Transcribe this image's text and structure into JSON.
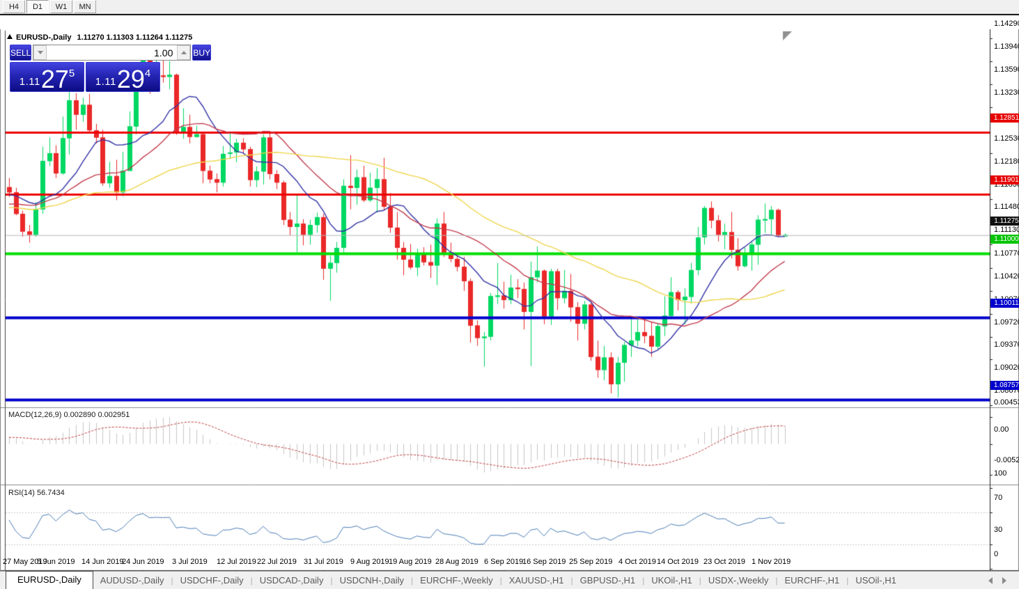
{
  "toolbar": {
    "timeframes": [
      "H4",
      "D1",
      "W1",
      "MN"
    ],
    "active": "D1"
  },
  "header": {
    "symbol": "EURUSD-,Daily",
    "ohlc": "1.11270 1.11303 1.11264 1.11275"
  },
  "trade": {
    "sell_label": "SELL",
    "buy_label": "BUY",
    "volume": "1.00",
    "sell_price": {
      "prefix": "1.11",
      "big": "27",
      "sup": "5"
    },
    "buy_price": {
      "prefix": "1.11",
      "big": "29",
      "sup": "4"
    }
  },
  "price_axis": {
    "ticks": [
      "1.14290",
      "1.13940",
      "1.13590",
      "1.13230",
      "1.12530",
      "1.12180",
      "1.11830",
      "1.11480",
      "1.11130",
      "1.10770",
      "1.10420",
      "1.10070",
      "1.09720",
      "1.09370",
      "1.09020",
      "1.08670"
    ],
    "badges": [
      {
        "text": "1.12851",
        "price": 1.12851,
        "bg": "#e60000"
      },
      {
        "text": "1.11901",
        "price": 1.11901,
        "bg": "#e60000"
      },
      {
        "text": "1.11275",
        "price": 1.11275,
        "bg": "#111111"
      },
      {
        "text": "1.11000",
        "price": 1.11,
        "bg": "#00c400"
      },
      {
        "text": "1.10011",
        "price": 1.10011,
        "bg": "#0000cc"
      },
      {
        "text": "1.08757",
        "price": 1.08757,
        "bg": "#0000cc"
      }
    ]
  },
  "macd": {
    "name": "MACD(12,26,9)",
    "value_main": "0.002890",
    "value_signal": "0.002951",
    "ticks": [
      {
        "t": "0.004536",
        "v": 0.004536
      },
      {
        "t": "0.00",
        "v": 0
      },
      {
        "t": "-0.005205",
        "v": -0.005205
      }
    ],
    "hist_color": "#c6c6c6",
    "signal_color": "#c03a3a"
  },
  "rsi": {
    "name": "RSI(14)",
    "value": "56.7434",
    "ticks": [
      {
        "t": "100",
        "v": 100
      },
      {
        "t": "70",
        "v": 70
      },
      {
        "t": "30",
        "v": 30
      },
      {
        "t": "0",
        "v": 0
      }
    ],
    "levels": [
      70,
      30
    ],
    "line_color": "#4b7db8",
    "level_color": "#c8c8c8"
  },
  "tabs": {
    "divider": "|",
    "items": [
      "EURUSD-,Daily",
      "AUDUSD-,Daily",
      "USDCHF-,Daily",
      "USDCAD-,Daily",
      "USDCNH-,Daily",
      "EURCHF-,Weekly",
      "XAUUSD-,H1",
      "GBPUSD-,H1",
      "UKOil-,H1",
      "USDX-,Weekly",
      "EURCHF-,H1",
      "USOil-,H1"
    ],
    "active_index": 0
  },
  "chart_data": {
    "type": "candlestick",
    "title": "EURUSD-,Daily",
    "bull_color": "#00d862",
    "bear_color": "#ea2828",
    "bid_line": {
      "price": 1.11275,
      "color": "#b8b8b8"
    },
    "hlines": [
      {
        "price": 1.12851,
        "color": "#ee0000",
        "width": 3
      },
      {
        "price": 1.11901,
        "color": "#ee0000",
        "width": 3
      },
      {
        "price": 1.11,
        "color": "#00dd00",
        "width": 4
      },
      {
        "price": 1.10011,
        "color": "#0000cc",
        "width": 4
      },
      {
        "price": 1.08757,
        "color": "#0000cc",
        "width": 4
      }
    ],
    "moving_averages": [
      {
        "period": 10,
        "color": "#3333a6"
      },
      {
        "period": 22,
        "color": "#c23b4c"
      },
      {
        "period": 45,
        "color": "#efd54b"
      }
    ],
    "x_labels": [
      {
        "t": "27 May 2019",
        "i": 0
      },
      {
        "t": "5 Jun 2019",
        "i": 7
      },
      {
        "t": "14 Jun 2019",
        "i": 14
      },
      {
        "t": "24 Jun 2019",
        "i": 20
      },
      {
        "t": "3 Jul 2019",
        "i": 27
      },
      {
        "t": "12 Jul 2019",
        "i": 34
      },
      {
        "t": "22 Jul 2019",
        "i": 40
      },
      {
        "t": "31 Jul 2019",
        "i": 47
      },
      {
        "t": "9 Aug 2019",
        "i": 54
      },
      {
        "t": "19 Aug 2019",
        "i": 60
      },
      {
        "t": "28 Aug 2019",
        "i": 67
      },
      {
        "t": "6 Sep 2019",
        "i": 74
      },
      {
        "t": "16 Sep 2019",
        "i": 80
      },
      {
        "t": "25 Sep 2019",
        "i": 87
      },
      {
        "t": "4 Oct 2019",
        "i": 94
      },
      {
        "t": "14 Oct 2019",
        "i": 100
      },
      {
        "t": "23 Oct 2019",
        "i": 107
      },
      {
        "t": "1 Nov 2019",
        "i": 114
      }
    ],
    "warmup_closes": [
      1.114,
      1.1148,
      1.1155,
      1.115,
      1.1144,
      1.1152,
      1.1158,
      1.115,
      1.1162,
      1.1155,
      1.1165,
      1.1158,
      1.117,
      1.1163,
      1.1175,
      1.1168,
      1.118,
      1.1173,
      1.1185,
      1.1179,
      1.119,
      1.1184,
      1.1195,
      1.1189,
      1.1199,
      1.1205
    ],
    "candles": [
      [
        "2019-05-27",
        1.1201,
        1.1215,
        1.1186,
        1.1193
      ],
      [
        "2019-05-28",
        1.1193,
        1.12,
        1.1158,
        1.116
      ],
      [
        "2019-05-29",
        1.116,
        1.1165,
        1.1125,
        1.1133
      ],
      [
        "2019-05-30",
        1.1133,
        1.1143,
        1.1116,
        1.1128
      ],
      [
        "2019-05-31",
        1.1128,
        1.1178,
        1.1125,
        1.1167
      ],
      [
        "2019-06-03",
        1.1167,
        1.1263,
        1.116,
        1.1241
      ],
      [
        "2019-06-04",
        1.1241,
        1.1277,
        1.1233,
        1.1253
      ],
      [
        "2019-06-05",
        1.1253,
        1.1265,
        1.1215,
        1.1222
      ],
      [
        "2019-06-06",
        1.1222,
        1.1309,
        1.122,
        1.1276
      ],
      [
        "2019-06-07",
        1.1276,
        1.1348,
        1.1251,
        1.1334
      ],
      [
        "2019-06-10",
        1.1334,
        1.1345,
        1.1289,
        1.1312
      ],
      [
        "2019-06-11",
        1.1312,
        1.1338,
        1.1301,
        1.1327
      ],
      [
        "2019-06-12",
        1.1327,
        1.1344,
        1.1284,
        1.1288
      ],
      [
        "2019-06-13",
        1.1288,
        1.1298,
        1.1268,
        1.1277
      ],
      [
        "2019-06-14",
        1.1277,
        1.1289,
        1.1203,
        1.1207
      ],
      [
        "2019-06-17",
        1.1207,
        1.124,
        1.12,
        1.1218
      ],
      [
        "2019-06-18",
        1.1218,
        1.1243,
        1.1181,
        1.1193
      ],
      [
        "2019-06-19",
        1.1193,
        1.1255,
        1.1187,
        1.1226
      ],
      [
        "2019-06-20",
        1.1226,
        1.1317,
        1.1226,
        1.1294
      ],
      [
        "2019-06-21",
        1.1294,
        1.1378,
        1.1282,
        1.1369
      ],
      [
        "2019-06-24",
        1.1369,
        1.1406,
        1.1365,
        1.14
      ],
      [
        "2019-06-25",
        1.14,
        1.1412,
        1.1344,
        1.1366
      ],
      [
        "2019-06-26",
        1.1366,
        1.1405,
        1.1348,
        1.1372
      ],
      [
        "2019-06-27",
        1.1372,
        1.1412,
        1.1361,
        1.137
      ],
      [
        "2019-06-28",
        1.137,
        1.1394,
        1.1351,
        1.1373
      ],
      [
        "2019-07-01",
        1.1373,
        1.1375,
        1.1281,
        1.1285
      ],
      [
        "2019-07-02",
        1.1285,
        1.1322,
        1.1275,
        1.1293
      ],
      [
        "2019-07-03",
        1.1293,
        1.1312,
        1.1268,
        1.1278
      ],
      [
        "2019-07-04",
        1.1278,
        1.1295,
        1.1277,
        1.1282
      ],
      [
        "2019-07-05",
        1.1282,
        1.1286,
        1.1207,
        1.1226
      ],
      [
        "2019-07-08",
        1.1226,
        1.1234,
        1.1207,
        1.1213
      ],
      [
        "2019-07-09",
        1.1213,
        1.1222,
        1.1193,
        1.1208
      ],
      [
        "2019-07-10",
        1.1208,
        1.1264,
        1.1202,
        1.1252
      ],
      [
        "2019-07-11",
        1.1252,
        1.1286,
        1.1244,
        1.1254
      ],
      [
        "2019-07-12",
        1.1254,
        1.1275,
        1.1239,
        1.1269
      ],
      [
        "2019-07-15",
        1.1269,
        1.1276,
        1.1253,
        1.1259
      ],
      [
        "2019-07-16",
        1.1259,
        1.1263,
        1.1202,
        1.1212
      ],
      [
        "2019-07-17",
        1.1212,
        1.1233,
        1.1201,
        1.1225
      ],
      [
        "2019-07-18",
        1.1225,
        1.1282,
        1.1205,
        1.1277
      ],
      [
        "2019-07-19",
        1.1277,
        1.1283,
        1.1213,
        1.1221
      ],
      [
        "2019-07-22",
        1.1221,
        1.1227,
        1.1198,
        1.1208
      ],
      [
        "2019-07-23",
        1.1208,
        1.1211,
        1.1143,
        1.1151
      ],
      [
        "2019-07-24",
        1.1151,
        1.1163,
        1.1127,
        1.114
      ],
      [
        "2019-07-25",
        1.114,
        1.1188,
        1.1101,
        1.1145
      ],
      [
        "2019-07-26",
        1.1145,
        1.1152,
        1.1112,
        1.1128
      ],
      [
        "2019-07-29",
        1.1128,
        1.1151,
        1.1113,
        1.1143
      ],
      [
        "2019-07-30",
        1.1143,
        1.1162,
        1.1131,
        1.1155
      ],
      [
        "2019-07-31",
        1.1155,
        1.116,
        1.1059,
        1.1076
      ],
      [
        "2019-08-01",
        1.1076,
        1.1096,
        1.1027,
        1.1085
      ],
      [
        "2019-08-02",
        1.1085,
        1.1117,
        1.107,
        1.1108
      ],
      [
        "2019-08-05",
        1.1108,
        1.1213,
        1.1101,
        1.1203
      ],
      [
        "2019-08-06",
        1.1203,
        1.125,
        1.1167,
        1.12
      ],
      [
        "2019-08-07",
        1.12,
        1.1228,
        1.1174,
        1.1216
      ],
      [
        "2019-08-08",
        1.1216,
        1.1234,
        1.1178,
        1.1181
      ],
      [
        "2019-08-09",
        1.1181,
        1.1223,
        1.1178,
        1.12
      ],
      [
        "2019-08-12",
        1.12,
        1.123,
        1.1162,
        1.1213
      ],
      [
        "2019-08-13",
        1.1213,
        1.1246,
        1.1166,
        1.1171
      ],
      [
        "2019-08-14",
        1.1171,
        1.1192,
        1.1131,
        1.1139
      ],
      [
        "2019-08-15",
        1.1139,
        1.1163,
        1.109,
        1.1108
      ],
      [
        "2019-08-16",
        1.1108,
        1.1117,
        1.1066,
        1.109
      ],
      [
        "2019-08-19",
        1.109,
        1.1114,
        1.1075,
        1.1078
      ],
      [
        "2019-08-20",
        1.1078,
        1.1107,
        1.1065,
        1.11
      ],
      [
        "2019-08-21",
        1.11,
        1.1109,
        1.1081,
        1.1086
      ],
      [
        "2019-08-22",
        1.1086,
        1.1113,
        1.1062,
        1.1081
      ],
      [
        "2019-08-23",
        1.1081,
        1.1153,
        1.1051,
        1.1145
      ],
      [
        "2019-08-26",
        1.1145,
        1.1163,
        1.1094,
        1.1101
      ],
      [
        "2019-08-27",
        1.1101,
        1.1116,
        1.1086,
        1.1091
      ],
      [
        "2019-08-28",
        1.1091,
        1.1098,
        1.1072,
        1.1079
      ],
      [
        "2019-08-29",
        1.1079,
        1.1094,
        1.1042,
        1.1057
      ],
      [
        "2019-08-30",
        1.1057,
        1.1061,
        1.0963,
        1.0989
      ],
      [
        "2019-09-02",
        1.0989,
        1.0997,
        1.0958,
        1.097
      ],
      [
        "2019-09-03",
        1.097,
        1.0979,
        1.0926,
        1.0972
      ],
      [
        "2019-09-04",
        1.0972,
        1.1039,
        1.0966,
        1.1034
      ],
      [
        "2019-09-05",
        1.1034,
        1.1085,
        1.1022,
        1.1035
      ],
      [
        "2019-09-06",
        1.1035,
        1.1056,
        1.1015,
        1.1028
      ],
      [
        "2019-09-09",
        1.1028,
        1.1067,
        1.1022,
        1.1047
      ],
      [
        "2019-09-10",
        1.1047,
        1.106,
        1.1031,
        1.1045
      ],
      [
        "2019-09-11",
        1.1045,
        1.1055,
        1.0983,
        1.101
      ],
      [
        "2019-09-12",
        1.101,
        1.1087,
        1.0927,
        1.1063
      ],
      [
        "2019-09-13",
        1.1063,
        1.111,
        1.1055,
        1.1073
      ],
      [
        "2019-09-16",
        1.1073,
        1.1075,
        1.0991,
        1.1003
      ],
      [
        "2019-09-17",
        1.1003,
        1.1076,
        1.099,
        1.1072
      ],
      [
        "2019-09-18",
        1.1072,
        1.1076,
        1.1013,
        1.1031
      ],
      [
        "2019-09-19",
        1.1031,
        1.1074,
        1.1023,
        1.1042
      ],
      [
        "2019-09-20",
        1.1042,
        1.1068,
        1.0995,
        1.1017
      ],
      [
        "2019-09-23",
        1.1017,
        1.1025,
        1.0966,
        1.0992
      ],
      [
        "2019-09-24",
        1.0992,
        1.1027,
        1.0983,
        1.1021
      ],
      [
        "2019-09-25",
        1.1021,
        1.1024,
        1.0935,
        1.0941
      ],
      [
        "2019-09-26",
        1.0941,
        1.0966,
        1.0909,
        1.0921
      ],
      [
        "2019-09-27",
        1.0921,
        1.0958,
        1.0905,
        1.094
      ],
      [
        "2019-09-30",
        1.094,
        1.0948,
        1.0885,
        1.0899
      ],
      [
        "2019-10-01",
        1.0899,
        1.0941,
        1.0879,
        1.0932
      ],
      [
        "2019-10-02",
        1.0932,
        1.0964,
        1.0903,
        1.0959
      ],
      [
        "2019-10-03",
        1.0959,
        1.0999,
        1.0941,
        1.0966
      ],
      [
        "2019-10-04",
        1.0966,
        1.0999,
        1.0957,
        1.0979
      ],
      [
        "2019-10-07",
        1.0979,
        1.1,
        1.0962,
        1.0973
      ],
      [
        "2019-10-08",
        1.0973,
        1.0995,
        1.0941,
        1.0957
      ],
      [
        "2019-10-09",
        1.0957,
        1.0993,
        1.0953,
        1.0988
      ],
      [
        "2019-10-10",
        1.0988,
        1.1034,
        1.0973,
        1.1004
      ],
      [
        "2019-10-11",
        1.1004,
        1.1063,
        1.1002,
        1.104
      ],
      [
        "2019-10-14",
        1.104,
        1.1043,
        1.1012,
        1.1028
      ],
      [
        "2019-10-15",
        1.1028,
        1.1046,
        1.0991,
        1.1033
      ],
      [
        "2019-10-16",
        1.1033,
        1.1085,
        1.1023,
        1.1074
      ],
      [
        "2019-10-17",
        1.1074,
        1.114,
        1.1066,
        1.1124
      ],
      [
        "2019-10-18",
        1.1124,
        1.1172,
        1.1113,
        1.1169
      ],
      [
        "2019-10-21",
        1.1169,
        1.1179,
        1.1138,
        1.115
      ],
      [
        "2019-10-22",
        1.115,
        1.1158,
        1.1118,
        1.1128
      ],
      [
        "2019-10-23",
        1.1128,
        1.1145,
        1.1106,
        1.1132
      ],
      [
        "2019-10-24",
        1.1132,
        1.1163,
        1.1092,
        1.1105
      ],
      [
        "2019-10-25",
        1.1105,
        1.1123,
        1.1073,
        1.108
      ],
      [
        "2019-10-28",
        1.108,
        1.1108,
        1.1078,
        1.1099
      ],
      [
        "2019-10-29",
        1.1099,
        1.1118,
        1.1073,
        1.1113
      ],
      [
        "2019-10-30",
        1.1113,
        1.1158,
        1.1082,
        1.1151
      ],
      [
        "2019-10-31",
        1.1151,
        1.1176,
        1.1131,
        1.1152
      ],
      [
        "2019-11-01",
        1.1152,
        1.1172,
        1.1128,
        1.1166
      ],
      [
        "2019-11-04",
        1.1166,
        1.1168,
        1.1124,
        1.1127
      ],
      [
        "2019-11-05",
        1.1127,
        1.11303,
        1.11264,
        1.11275
      ]
    ]
  }
}
